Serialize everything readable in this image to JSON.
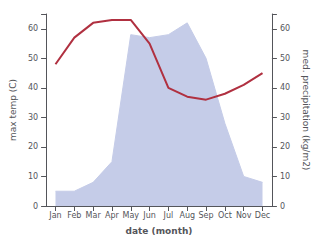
{
  "chart_data": {
    "type": "line",
    "xlabel": "date (month)",
    "ylabel": "max temp (C)",
    "y2label": "med. precipitation (kg/m2)",
    "categories": [
      "Jan",
      "Feb",
      "Mar",
      "Apr",
      "May",
      "Jun",
      "Jul",
      "Aug",
      "Sep",
      "Oct",
      "Nov",
      "Dec"
    ],
    "series": [
      {
        "type": "area",
        "axis": "y2",
        "color": "#c5cce8",
        "values": [
          5,
          5,
          8,
          15,
          58,
          57,
          58,
          62,
          50,
          28,
          10,
          8
        ]
      },
      {
        "type": "line",
        "color": "#b03040",
        "values": [
          48,
          57,
          62,
          63,
          63,
          55,
          40,
          37,
          36,
          38,
          41,
          45
        ]
      }
    ],
    "ylim": [
      0,
      65
    ],
    "yticks": [
      0,
      10,
      20,
      30,
      40,
      50,
      60
    ],
    "y2lim": [
      0,
      65
    ],
    "y2ticks": [
      0,
      10,
      20,
      30,
      40,
      50,
      60
    ],
    "grid": false
  }
}
